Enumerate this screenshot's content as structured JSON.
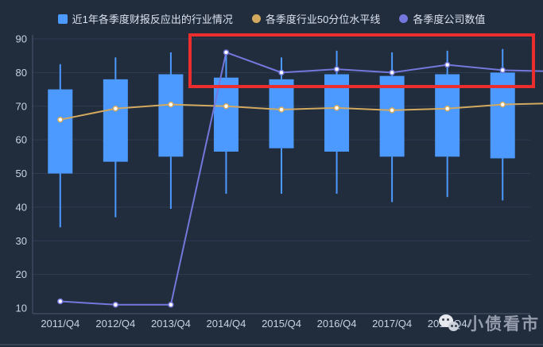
{
  "legend": {
    "items": [
      {
        "label": "近1年各季度财报反应出的行业情况",
        "marker": "square",
        "color": "#4C9AFF"
      },
      {
        "label": "各季度行业50分位水平线",
        "marker": "circle",
        "color": "#D2A95F"
      },
      {
        "label": "各季度公司数值",
        "marker": "circle",
        "color": "#7477DB"
      }
    ]
  },
  "chart_data": {
    "type": "boxplot-with-lines",
    "title": "",
    "categories": [
      "2011/Q4",
      "2012/Q4",
      "2013/Q4",
      "2014/Q4",
      "2015/Q4",
      "2016/Q4",
      "2017/Q4",
      "2018/Q4",
      ""
    ],
    "boxplot": {
      "name": "近1年各季度财报反应出的行业情况",
      "color": "#4C9AFF",
      "values_low_q1_q3_high": [
        [
          34,
          50,
          75,
          82.5
        ],
        [
          37,
          53.5,
          78,
          84.5
        ],
        [
          39.5,
          55,
          79.5,
          86
        ],
        [
          44,
          56.5,
          78.5,
          85.5
        ],
        [
          44,
          57.5,
          78,
          84.5
        ],
        [
          44,
          56.5,
          79.5,
          86.5
        ],
        [
          41.5,
          55,
          79,
          86
        ],
        [
          43,
          55,
          79.5,
          86.5
        ],
        [
          42,
          54.5,
          80,
          87
        ]
      ]
    },
    "series": [
      {
        "name": "各季度行业50分位水平线",
        "type": "line",
        "color": "#D2A95F",
        "values": [
          66,
          69.3,
          70.5,
          70,
          69,
          69.5,
          68.8,
          69.3,
          70.5
        ],
        "right_edge_value": 70.8
      },
      {
        "name": "各季度公司数值",
        "type": "line",
        "color": "#7477DB",
        "values": [
          12,
          11,
          11,
          86,
          80,
          81,
          80,
          82.3,
          80.7
        ],
        "right_edge_value": 80.4
      }
    ],
    "yticks": [
      10,
      20,
      30,
      40,
      50,
      60,
      70,
      80,
      90
    ],
    "ylim": [
      8.3,
      90
    ],
    "grid": true,
    "legend_position": "top"
  },
  "annotation": {
    "shape": "rectangle",
    "color": "#EC2D2D"
  },
  "watermark": {
    "text": "小债看市",
    "icon": "wechat-icon"
  },
  "colors": {
    "background": "#212C3C",
    "gridline": "#2E3B52",
    "axis_line": "#4C5A72",
    "tick_label": "#C9D3E3",
    "box_fill": "#4C9AFF",
    "median_line": "#D2A95F",
    "company_line": "#7477DB",
    "annotation_red": "#EC2D2D",
    "watermark_gray": "#9CA4B4"
  }
}
